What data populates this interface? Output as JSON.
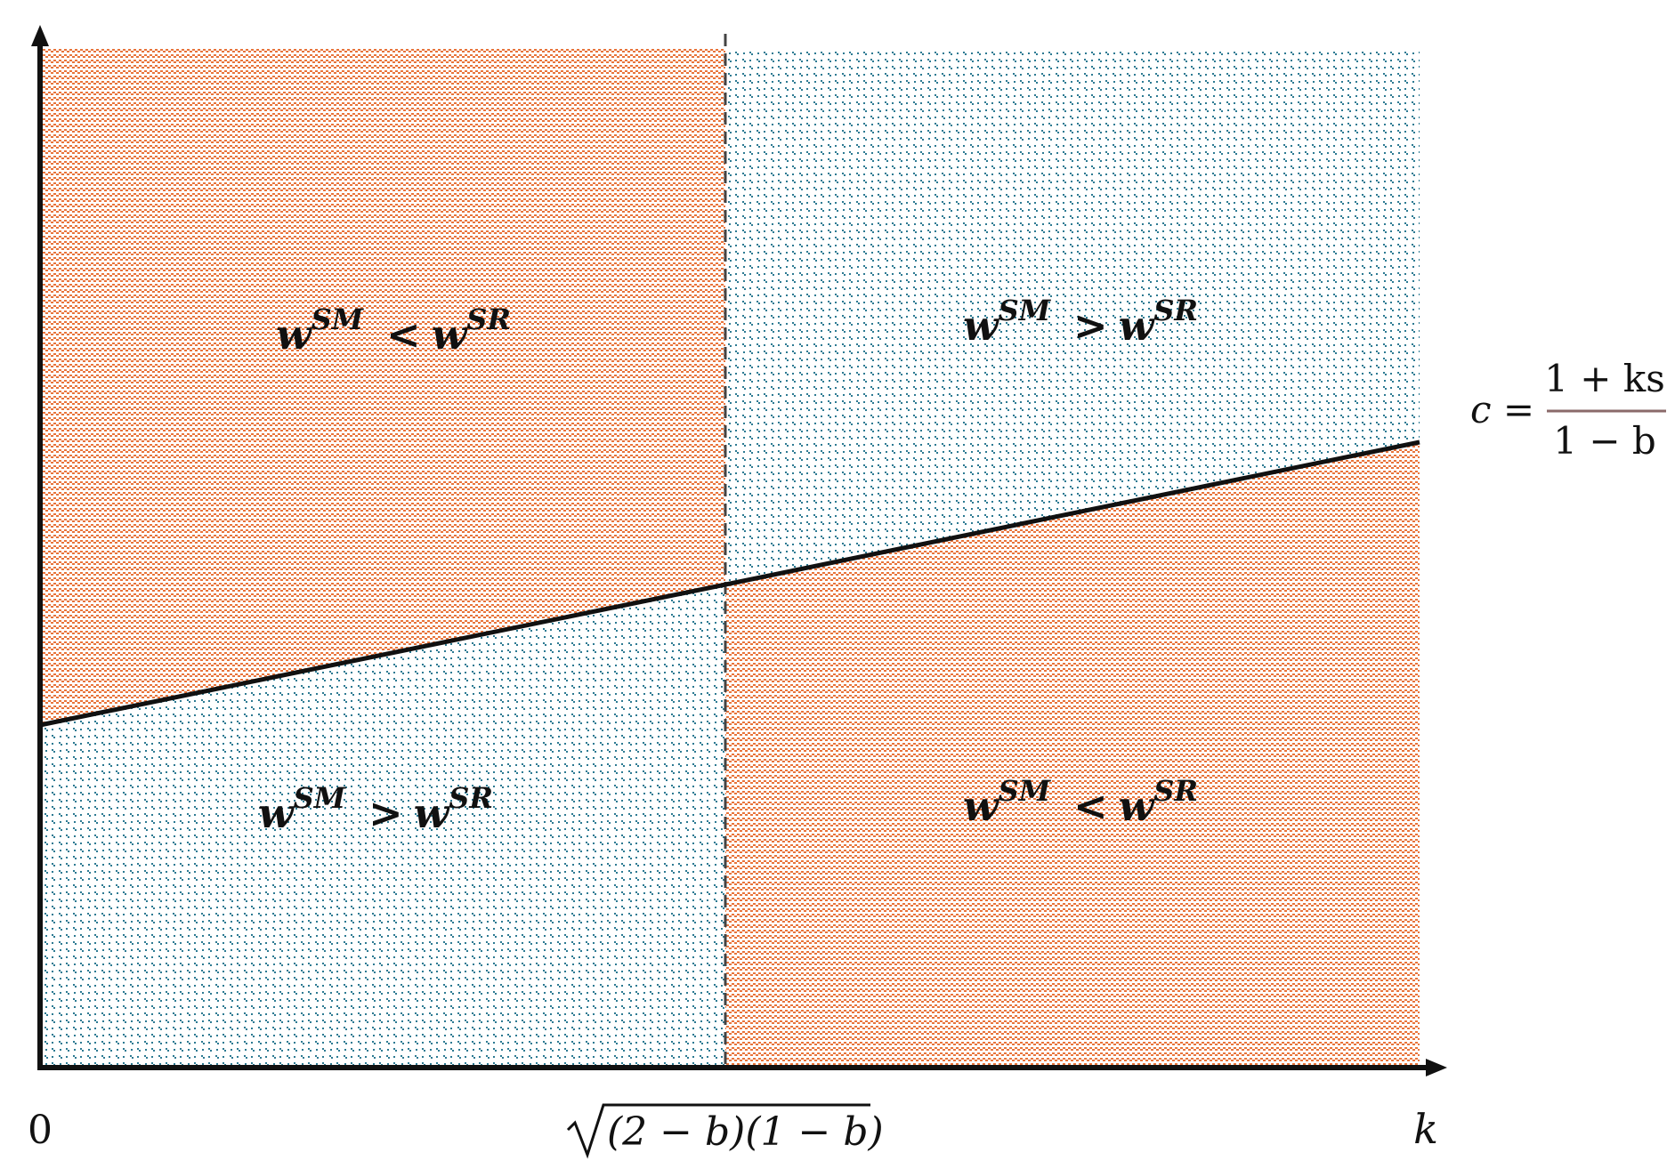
{
  "colors": {
    "orange": "#e8743b",
    "teal": "#2d7a92",
    "axis": "#111111"
  },
  "regions": {
    "top_left": {
      "w1": "w",
      "s1": "SM",
      "op": "<",
      "w2": "w",
      "s2": "SR"
    },
    "top_right": {
      "w1": "w",
      "s1": "SM",
      "op": ">",
      "w2": "w",
      "s2": "SR"
    },
    "bottom_left": {
      "w1": "w",
      "s1": "SM",
      "op": ">",
      "w2": "w",
      "s2": "SR"
    },
    "bottom_right": {
      "w1": "w",
      "s1": "SM",
      "op": "<",
      "w2": "w",
      "s2": "SR"
    }
  },
  "axis": {
    "origin_label": "0",
    "threshold_label": "(2 − b)(1 − b)",
    "x_name": "k"
  },
  "curve_label": {
    "lhs": "c =",
    "numerator": "1 + ks",
    "denominator": "1 − b"
  }
}
